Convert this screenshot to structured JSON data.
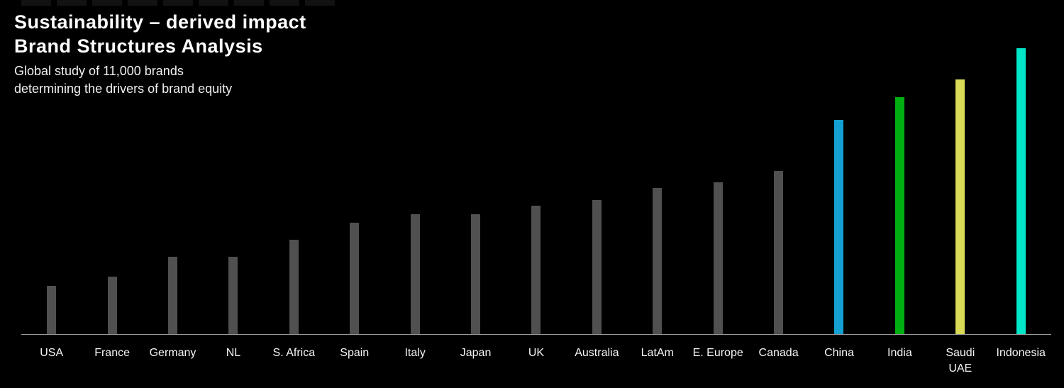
{
  "header": {
    "title_line1": "Sustainability – derived impact",
    "title_line2": "Brand Structures Analysis",
    "subtitle_line1": "Global study of 11,000 brands",
    "subtitle_line2": "determining the drivers of brand equity"
  },
  "top_strip": {
    "segment_count": 9
  },
  "colors": {
    "background": "#000000",
    "axis": "#9a9a9a",
    "default_bar": "#505050",
    "label_text": "#f5f5f5",
    "highlight_china": "#14a0d2",
    "highlight_india": "#00b012",
    "highlight_saudi_uae": "#d9da56",
    "highlight_indonesia": "#00e6c8"
  },
  "chart_data": {
    "type": "bar",
    "title": "Sustainability – derived impact — Brand Structures Analysis",
    "subtitle": "Global study of 11,000 brands determining the drivers of brand equity",
    "categories": [
      "USA",
      "France",
      "Germany",
      "NL",
      "S. Africa",
      "Spain",
      "Italy",
      "Japan",
      "UK",
      "Australia",
      "LatAm",
      "E. Europe",
      "Canada",
      "China",
      "India",
      "Saudi\nUAE",
      "Indonesia"
    ],
    "values": [
      17,
      20,
      27,
      27,
      33,
      39,
      42,
      42,
      45,
      47,
      51,
      53,
      57,
      75,
      83,
      89,
      100
    ],
    "bar_colors": [
      "#505050",
      "#505050",
      "#505050",
      "#505050",
      "#505050",
      "#505050",
      "#505050",
      "#505050",
      "#505050",
      "#505050",
      "#505050",
      "#505050",
      "#505050",
      "#14a0d2",
      "#00b012",
      "#d9da56",
      "#00e6c8"
    ],
    "xlabel": "",
    "ylabel": "",
    "ylim": [
      0,
      100
    ],
    "grid": false,
    "legend": "none",
    "y_axis_ticks_shown": false,
    "value_scale_note": "relative index, tallest bar (Indonesia) = 100"
  }
}
